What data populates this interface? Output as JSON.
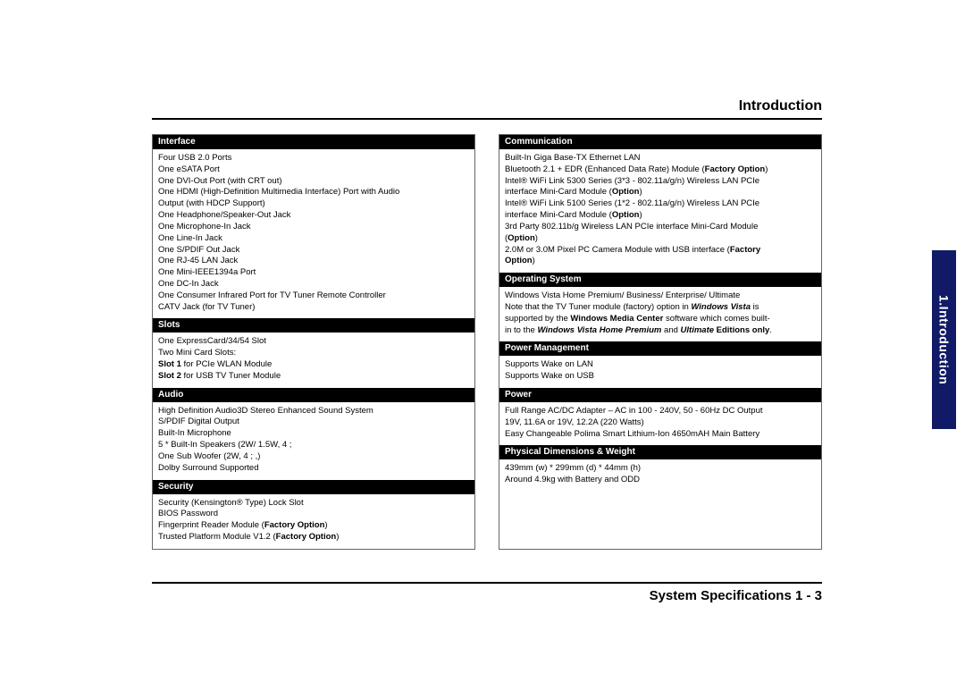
{
  "header": {
    "title": "Introduction"
  },
  "sideTab": {
    "label": "1.Introduction"
  },
  "footer": {
    "title": "System Specifications  1  -  3"
  },
  "leftColumn": {
    "sections": [
      {
        "title": "Interface",
        "lines": [
          {
            "text": "Four USB 2.0 Ports"
          },
          {
            "text": "One eSATA Port"
          },
          {
            "text": "One DVI-Out Port (with CRT out)"
          },
          {
            "text": "One HDMI (High-Definition Multimedia Interface) Port with Audio"
          },
          {
            "text": "Output (with HDCP Support)"
          },
          {
            "text": "One Headphone/Speaker-Out Jack"
          },
          {
            "text": "One Microphone-In Jack"
          },
          {
            "text": "One Line-In Jack"
          },
          {
            "text": "One S/PDIF Out Jack"
          },
          {
            "text": "One RJ-45 LAN Jack"
          },
          {
            "text": "One Mini-IEEE1394a Port"
          },
          {
            "text": "One DC-In Jack"
          },
          {
            "text": "One Consumer Infrared Port for TV Tuner Remote Controller"
          },
          {
            "text": "CATV Jack (for TV Tuner)"
          }
        ]
      },
      {
        "title": "Slots",
        "lines": [
          {
            "text": "One ExpressCard/34/54 Slot"
          },
          {
            "text": "Two Mini Card Slots:"
          },
          {
            "html": "<strong>Slot 1</strong> for PCIe WLAN Module"
          },
          {
            "html": "<strong>Slot 2</strong> for USB TV Tuner Module"
          }
        ]
      },
      {
        "title": "Audio",
        "lines": [
          {
            "text": "High Definition Audio3D Stereo Enhanced Sound System"
          },
          {
            "text": "S/PDIF Digital Output"
          },
          {
            "text": "Built-In Microphone"
          },
          {
            "text": "5 * Built-In Speakers (2W/ 1.5W, 4 ;"
          },
          {
            "text": "One Sub Woofer (2W, 4 ; ,)"
          },
          {
            "text": "Dolby Surround Supported"
          }
        ]
      },
      {
        "title": "Security",
        "lines": [
          {
            "text": "Security (Kensington® Type) Lock Slot"
          },
          {
            "text": "BIOS Password"
          },
          {
            "html": "Fingerprint Reader Module (<strong>Factory Option</strong>)"
          },
          {
            "html": "Trusted Platform Module V1.2 (<strong>Factory Option</strong>)"
          }
        ]
      }
    ]
  },
  "rightColumn": {
    "sections": [
      {
        "title": "Communication",
        "lines": [
          {
            "text": "Built-In Giga Base-TX Ethernet LAN"
          },
          {
            "html": "Bluetooth 2.1 + EDR (Enhanced Data Rate) Module  (<strong>Factory Option</strong>)"
          },
          {
            "text": "Intel® WiFi Link 5300 Series (3*3 - 802.11a/g/n) Wireless LAN PCIe"
          },
          {
            "html": "interface Mini-Card Module (<strong>Option</strong>)"
          },
          {
            "text": "Intel® WiFi Link 5100 Series (1*2 - 802.11a/g/n) Wireless LAN PCIe"
          },
          {
            "html": "interface Mini-Card Module (<strong>Option</strong>)"
          },
          {
            "text": "3rd Party 802.11b/g Wireless LAN PCIe interface Mini-Card Module"
          },
          {
            "html": "(<strong>Option</strong>)"
          },
          {
            "html": "2.0M or 3.0M Pixel PC Camera Module with USB interface (<strong>Factory</strong>"
          },
          {
            "html": "<strong>Option</strong>)"
          }
        ]
      },
      {
        "title": "Operating System",
        "lines": [
          {
            "text": "Windows Vista Home Premium/ Business/ Enterprise/ Ultimate"
          },
          {
            "html": "Note that the TV Tuner module (factory) option in <strong><em>Windows Vista</em></strong> is"
          },
          {
            "html": "supported by the <strong>Windows Media Center</strong> software which comes built-"
          },
          {
            "html": "in to the <strong><em>Windows Vista Home Premium</em></strong> and <strong><em>Ultimate</em> Editions only</strong>."
          }
        ]
      },
      {
        "title": "Power Management",
        "lines": [
          {
            "text": "Supports Wake on LAN"
          },
          {
            "text": "Supports Wake on USB"
          }
        ]
      },
      {
        "title": "Power",
        "lines": [
          {
            "text": "Full Range AC/DC Adapter – AC in 100 - 240V, 50 - 60Hz DC Output"
          },
          {
            "text": "19V, 11.6A or 19V, 12.2A (220 Watts)"
          },
          {
            "text": "Easy Changeable Polima Smart Lithium-Ion 4650mAH Main Battery"
          }
        ]
      },
      {
        "title": "Physical Dimensions & Weight",
        "lines": [
          {
            "text": "439mm (w) * 299mm (d) * 44mm (h)"
          },
          {
            "text": "Around 4.9kg with Battery and ODD"
          }
        ]
      }
    ]
  }
}
